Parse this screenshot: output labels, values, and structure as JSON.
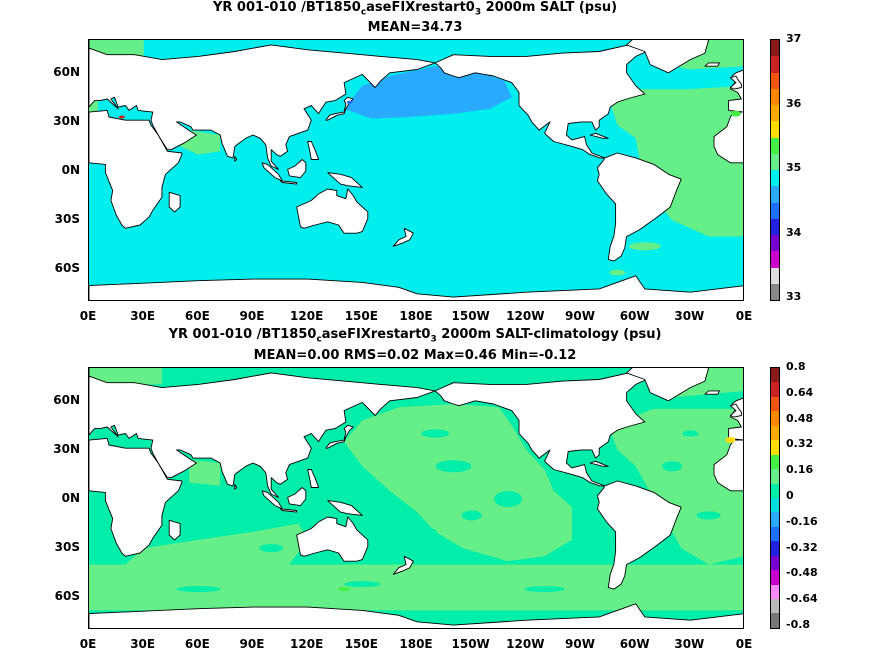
{
  "panels": [
    {
      "title_pre": "YR 001-010 /BT1850",
      "title_sub1": "c",
      "title_mid": "aseFIXrestart0",
      "title_sub2": "3",
      "title_post": " 2000m SALT (psu)",
      "stats": "MEAN=34.73",
      "cbar_labels": [
        "37",
        "36",
        "35",
        "34",
        "33"
      ],
      "colors": {
        "ocean": "#00eeee",
        "deep": "#29aaff",
        "green": "#66ee88",
        "land": "#ffffff",
        "coast": "#000000"
      },
      "cbar_colors": [
        "#8b1a1a",
        "#cc2222",
        "#ee5511",
        "#ff8800",
        "#ffaa00",
        "#ffdd00",
        "#44ee44",
        "#66ee88",
        "#00eeee",
        "#29aaff",
        "#1e6eff",
        "#2222dd",
        "#7700cc",
        "#cc00cc",
        "#dddddd",
        "#888888"
      ]
    },
    {
      "title_pre": "YR 001-010 /BT1850",
      "title_sub1": "c",
      "title_mid": "aseFIXrestart0",
      "title_sub2": "3",
      "title_post": " 2000m SALT-climatology (psu)",
      "stats": "MEAN=0.00   RMS=0.02   Max=0.46   Min=-0.12",
      "cbar_labels": [
        "0.8",
        "0.64",
        "0.48",
        "0.32",
        "0.16",
        "0",
        "-0.16",
        "-0.32",
        "-0.48",
        "-0.64",
        "-0.8"
      ],
      "colors": {
        "ocean": "#00eeaa",
        "deep": "#66ee88",
        "green": "#66ee88",
        "land": "#ffffff",
        "coast": "#000000"
      },
      "cbar_colors": [
        "#8b1a1a",
        "#cc2222",
        "#ee5511",
        "#ff8800",
        "#ffaa00",
        "#ffdd00",
        "#44ee44",
        "#66ee88",
        "#00eeaa",
        "#00dddd",
        "#29aaff",
        "#1e6eff",
        "#2222dd",
        "#7700cc",
        "#cc00cc",
        "#ff88ff",
        "#bbbbbb",
        "#777777"
      ]
    }
  ],
  "lat_labels": [
    "60N",
    "30N",
    "0N",
    "30S",
    "60S"
  ],
  "lon_labels": [
    "0E",
    "30E",
    "60E",
    "90E",
    "120E",
    "150E",
    "180E",
    "150W",
    "120W",
    "90W",
    "60W",
    "30W",
    "0E"
  ]
}
